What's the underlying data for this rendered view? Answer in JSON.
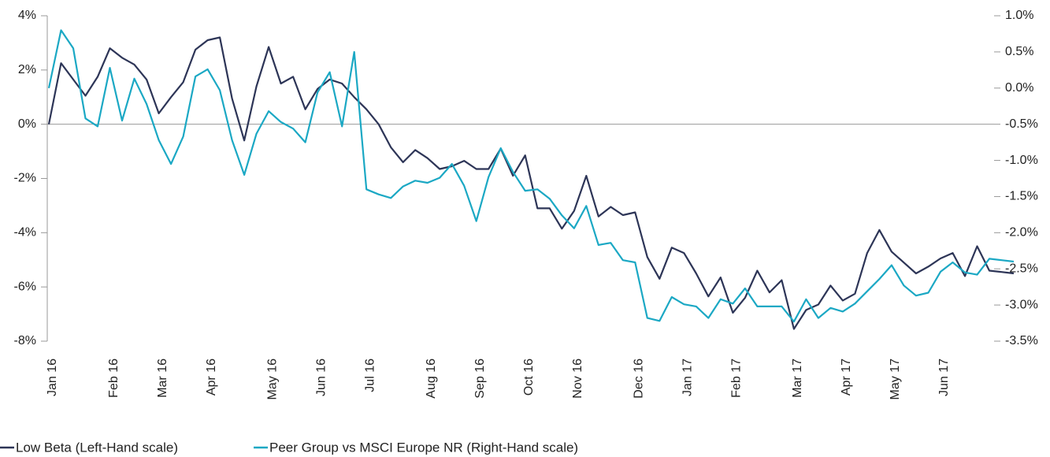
{
  "chart_data": {
    "type": "line",
    "categories": [
      "Jan 16",
      null,
      null,
      null,
      null,
      "Feb 16",
      null,
      null,
      null,
      "Mar 16",
      null,
      null,
      null,
      "Apr 16",
      null,
      null,
      null,
      null,
      "May 16",
      null,
      null,
      null,
      "Jun 16",
      null,
      null,
      null,
      "Jul 16",
      null,
      null,
      null,
      null,
      "Aug 16",
      null,
      null,
      null,
      "Sep 16",
      null,
      null,
      null,
      "Oct 16",
      null,
      null,
      null,
      "Nov 16",
      null,
      null,
      null,
      null,
      "Dec 16",
      null,
      null,
      null,
      "Jan 17",
      null,
      null,
      null,
      "Feb 17",
      null,
      null,
      null,
      null,
      "Mar 17",
      null,
      null,
      null,
      "Apr 17",
      null,
      null,
      null,
      "May 17",
      null,
      null,
      null,
      "Jun 17",
      null,
      null,
      null,
      null,
      null,
      null
    ],
    "series": [
      {
        "name": "Low Beta (Left-Hand scale)",
        "color": "#2d3557",
        "values": [
          0,
          2.25,
          1.65,
          1.05,
          1.75,
          2.8,
          2.45,
          2.2,
          1.65,
          0.4,
          1.0,
          1.55,
          2.75,
          3.1,
          3.2,
          0.95,
          -0.6,
          1.4,
          2.85,
          1.5,
          1.75,
          0.55,
          1.3,
          1.65,
          1.5,
          1.0,
          0.55,
          0,
          -0.85,
          -1.4,
          -0.95,
          -1.25,
          -1.65,
          -1.55,
          -1.35,
          -1.65,
          -1.65,
          -0.9,
          -1.9,
          -1.15,
          -3.1,
          -3.1,
          -3.85,
          -3.2,
          -1.9,
          -3.4,
          -3.05,
          -3.35,
          -3.25,
          -4.9,
          -5.7,
          -4.55,
          -4.75,
          -5.5,
          -6.35,
          -5.65,
          -6.95,
          -6.4,
          -5.4,
          -6.2,
          -5.75,
          -7.55,
          -6.85,
          -6.65,
          -5.95,
          -6.5,
          -6.25,
          -4.75,
          -3.9,
          -4.7,
          -5.1,
          -5.5,
          -5.25,
          -4.95,
          -4.75,
          -5.6,
          -4.5,
          -5.4,
          -5.45,
          -5.5
        ]
      },
      {
        "name": "Peer Group vs MSCI Europe NR (Right-Hand scale)",
        "color": "#1ba8c4",
        "axis": "y2",
        "values": [
          0.0,
          0.8,
          0.55,
          -0.42,
          -0.53,
          0.28,
          -0.45,
          0.13,
          -0.22,
          -0.72,
          -1.05,
          -0.67,
          0.16,
          0.26,
          -0.03,
          -0.72,
          -1.2,
          -0.63,
          -0.32,
          -0.47,
          -0.56,
          -0.75,
          -0.06,
          0.22,
          -0.53,
          0.5,
          -1.4,
          -1.47,
          -1.52,
          -1.36,
          -1.28,
          -1.31,
          -1.24,
          -1.05,
          -1.35,
          -1.84,
          -1.23,
          -0.83,
          -1.16,
          -1.42,
          -1.4,
          -1.53,
          -1.76,
          -1.94,
          -1.63,
          -2.17,
          -2.14,
          -2.38,
          -2.41,
          -3.18,
          -3.22,
          -2.89,
          -2.99,
          -3.02,
          -3.18,
          -2.92,
          -2.98,
          -2.77,
          -3.02,
          -3.02,
          -3.02,
          -3.23,
          -2.92,
          -3.18,
          -3.04,
          -3.09,
          -2.98,
          -2.81,
          -2.64,
          -2.45,
          -2.73,
          -2.87,
          -2.83,
          -2.54,
          -2.41,
          -2.55,
          -2.58,
          -2.36,
          -2.38,
          -2.4
        ]
      }
    ],
    "ylim": [
      -8,
      4
    ],
    "yticks": [
      {
        "value": -8,
        "label": "-8%"
      },
      {
        "value": -6,
        "label": "-6%"
      },
      {
        "value": -4,
        "label": "-4%"
      },
      {
        "value": -2,
        "label": "-2%"
      },
      {
        "value": 0,
        "label": "0%"
      },
      {
        "value": 2,
        "label": "2%"
      },
      {
        "value": 4,
        "label": "4%"
      }
    ],
    "y2lim": [
      -3.5,
      1.0
    ],
    "y2ticks": [
      {
        "value": -3.5,
        "label": "-3.5%"
      },
      {
        "value": -3.0,
        "label": "-3.0%"
      },
      {
        "value": -2.5,
        "label": "-2.5%"
      },
      {
        "value": -2.0,
        "label": "-2.0%"
      },
      {
        "value": -1.5,
        "label": "-1.5%"
      },
      {
        "value": -1.0,
        "label": "-1.0%"
      },
      {
        "value": -0.5,
        "label": "-0.5%"
      },
      {
        "value": 0.0,
        "label": "0.0%"
      },
      {
        "value": 0.5,
        "label": "0.5%"
      },
      {
        "value": 1.0,
        "label": "1.0%"
      }
    ],
    "legend": "bottom-left"
  }
}
